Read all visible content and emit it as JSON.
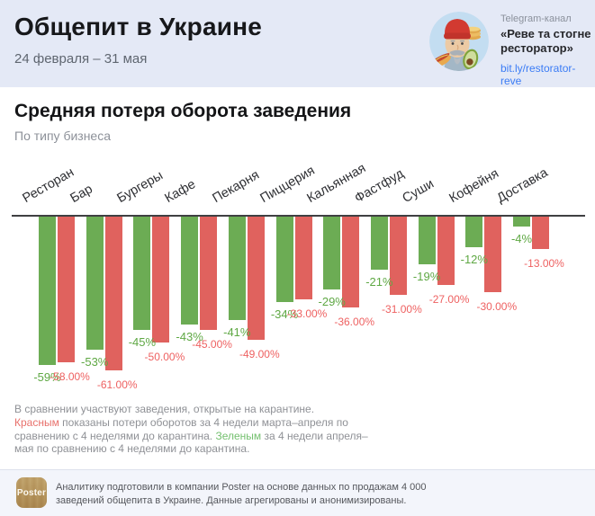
{
  "header": {
    "title": "Общепит в Украине",
    "date_range": "24 февраля – 31 мая",
    "channel": {
      "label": "Telegram-канал",
      "name": "«Реве та стогне ресторатор»",
      "link": "bit.ly/restorator-reve"
    }
  },
  "chart": {
    "title": "Средняя потеря оборота заведения",
    "subtitle": "По типу бизнеса"
  },
  "chart_data": {
    "type": "bar",
    "title": "Средняя потеря оборота заведения",
    "subtitle": "По типу бизнеса",
    "categories": [
      "Ресторан",
      "Бар",
      "Бургеры",
      "Кафе",
      "Пекарня",
      "Пиццерия",
      "Кальянная",
      "Фастфуд",
      "Суши",
      "Кофейня",
      "Доставка"
    ],
    "series": [
      {
        "name": "Зеленым: потери оборота за 4 недели апреля–мая по сравнению с 4 неделями до карантина",
        "color": "#6cac54",
        "values": [
          -59,
          -53,
          -45,
          -43,
          -41,
          -34,
          -29,
          -21,
          -19,
          -12,
          -4
        ],
        "labels": [
          "-59%",
          "-53%",
          "-45%",
          "-43%",
          "-41%",
          "-34%",
          "-29%",
          "-21%",
          "-19%",
          "-12%",
          "-4%"
        ]
      },
      {
        "name": "Красным: потери оборота за 4 недели марта–апреля по сравнению с 4 неделями до карантина",
        "color": "#e0625e",
        "values": [
          -58,
          -61,
          -50,
          -45,
          -49,
          -33,
          -36,
          -31,
          -27,
          -30,
          -13
        ],
        "labels": [
          "-58.00%",
          "-61.00%",
          "-50.00%",
          "-45.00%",
          "-49.00%",
          "-33.00%",
          "-36.00%",
          "-31.00%",
          "-27.00%",
          "-30.00%",
          "-13.00%"
        ]
      }
    ],
    "ylim": [
      -70,
      0
    ],
    "grid": false,
    "legend_position": "none"
  },
  "note": {
    "line1": "В сравнении участвуют заведения, открытые на карантине.",
    "red_word": "Красным",
    "after_red": " показаны потери оборотов за 4 недели марта–апреля по сравнению с 4 неделями до карантина. ",
    "green_word": "Зеленым",
    "after_green": " за 4 недели апреля–мая по сравнению с 4 неделями до карантина."
  },
  "footer": {
    "logo": "Poster",
    "text": "Аналитику подготовили в компании Poster на основе данных по продажам 4 000 заведений общепита в Украине. Данные агрегированы и анонимизированы."
  },
  "colors": {
    "green_bar": "#6cac54",
    "red_bar": "#e0625e",
    "green_label": "#5fa844",
    "red_label": "#ee6161",
    "header_bg": "#e4e9f6",
    "link": "#3b7cf5",
    "note_red": "#e8716c",
    "note_green": "#74c06f"
  }
}
